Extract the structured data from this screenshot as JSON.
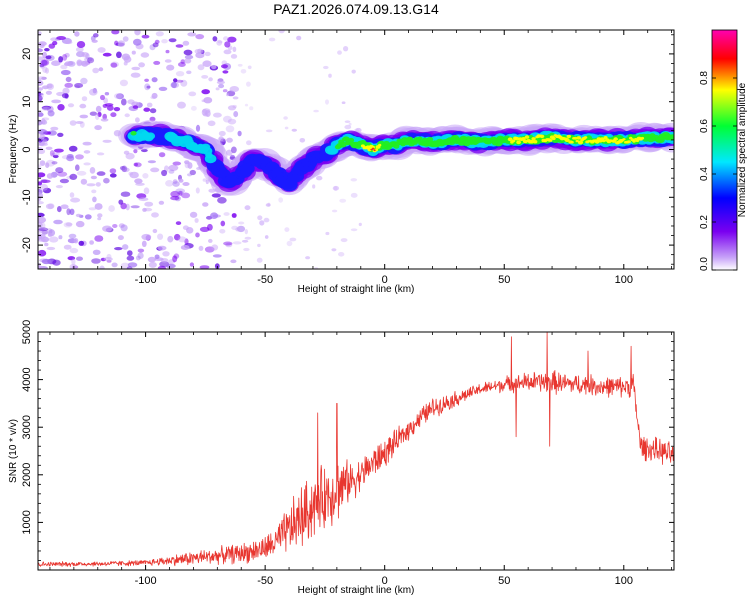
{
  "colors": {
    "snr_line": "#e8362f",
    "axis": "#000000",
    "track_core": "#ff1a1a",
    "track_mid": "#ffff00",
    "track_green": "#22ee22",
    "track_cyan": "#00d8f0",
    "track_blue": "#1a1aff",
    "noise_violet": "#7a00f0",
    "noise_light": "#c9a6f8",
    "colormap": [
      "#ffffff",
      "#7a00f0",
      "#0000ff",
      "#00e8ff",
      "#00ff33",
      "#ffff00",
      "#ff0000",
      "#ff00b0"
    ]
  },
  "chart_data": [
    {
      "type": "heatmap",
      "title": "PAZ1.2026.074.09.13.G14",
      "xlabel": "Height of straight line (km)",
      "ylabel": "Frequency (Hz)",
      "xlim": [
        -145,
        121
      ],
      "ylim": [
        -25,
        25
      ],
      "xticks": [
        -100,
        -50,
        0,
        50,
        100
      ],
      "yticks": [
        -20,
        -10,
        0,
        10,
        20
      ],
      "colorbar": {
        "label": "Normalized spectral amplitude",
        "range": [
          0,
          1
        ],
        "ticks": [
          "0.0",
          "0.2",
          "0.4",
          "0.6",
          "0.8"
        ],
        "tick_values": [
          0.0,
          0.2,
          0.4,
          0.6,
          0.8
        ]
      },
      "signal_track": {
        "x_km": [
          -105,
          -95,
          -85,
          -80,
          -75,
          -70,
          -65,
          -60,
          -55,
          -50,
          -45,
          -40,
          -35,
          -30,
          -25,
          -20,
          -15,
          -10,
          -5,
          0,
          5,
          10,
          20,
          30,
          40,
          50,
          60,
          70,
          80,
          90,
          100,
          110,
          121
        ],
        "freq_hz": [
          3,
          3,
          2,
          1,
          0,
          -4,
          -7,
          -5,
          -2,
          -3,
          -5,
          -7,
          -4,
          -2,
          -1,
          1,
          2,
          1,
          0,
          1,
          1,
          2,
          1.5,
          2,
          1.5,
          2,
          2,
          2.5,
          2,
          2,
          2,
          2.5,
          2.5
        ],
        "amplitude": [
          0.6,
          0.4,
          0.5,
          0.5,
          0.5,
          0.4,
          0.3,
          0.3,
          0.3,
          0.3,
          0.3,
          0.3,
          0.4,
          0.4,
          0.3,
          0.6,
          0.7,
          0.7,
          0.9,
          0.6,
          0.6,
          0.6,
          0.6,
          0.7,
          0.7,
          0.7,
          0.8,
          0.8,
          0.8,
          0.8,
          0.8,
          0.7,
          0.7
        ]
      },
      "noise_region_km": [
        -145,
        -80
      ]
    },
    {
      "type": "line",
      "title": "",
      "xlabel": "Height of straight line (km)",
      "ylabel": "SNR (10 * v/v)",
      "xlim": [
        -145,
        121
      ],
      "ylim": [
        0,
        5000
      ],
      "xticks": [
        -100,
        -50,
        0,
        50,
        100
      ],
      "yticks": [
        1000,
        2000,
        3000,
        4000,
        5000
      ],
      "series": [
        {
          "name": "SNR",
          "envelope_x_km": [
            -145,
            -120,
            -100,
            -90,
            -80,
            -70,
            -60,
            -50,
            -45,
            -40,
            -35,
            -30,
            -25,
            -20,
            -15,
            -10,
            -5,
            0,
            5,
            10,
            15,
            20,
            25,
            30,
            35,
            40,
            45,
            50,
            55,
            60,
            65,
            70,
            75,
            80,
            85,
            90,
            95,
            100,
            104,
            107,
            110,
            115,
            121
          ],
          "envelope_y": [
            120,
            130,
            150,
            200,
            250,
            300,
            350,
            450,
            600,
            850,
            1100,
            1350,
            1550,
            1700,
            1850,
            2000,
            2250,
            2450,
            2700,
            2950,
            3200,
            3400,
            3500,
            3600,
            3700,
            3800,
            3850,
            3900,
            3920,
            3950,
            3950,
            3950,
            3920,
            3900,
            3900,
            3850,
            3850,
            3850,
            3900,
            2600,
            2550,
            2500,
            2400
          ],
          "noise_amplitude": [
            60,
            60,
            70,
            120,
            180,
            200,
            250,
            300,
            400,
            600,
            800,
            800,
            800,
            800,
            500,
            400,
            400,
            350,
            300,
            250,
            250,
            250,
            200,
            200,
            150,
            150,
            150,
            200,
            200,
            250,
            250,
            300,
            250,
            250,
            250,
            250,
            250,
            250,
            300,
            300,
            300,
            300,
            300
          ],
          "spikes": [
            {
              "x_km": -20,
              "y": 3500
            },
            {
              "x_km": -28,
              "y": 3300
            },
            {
              "x_km": 53,
              "y": 4900
            },
            {
              "x_km": 68,
              "y": 5000
            },
            {
              "x_km": 69,
              "y": 2600
            },
            {
              "x_km": 85,
              "y": 4600
            },
            {
              "x_km": 103,
              "y": 4700
            },
            {
              "x_km": 55,
              "y": 2800
            }
          ]
        }
      ]
    }
  ]
}
